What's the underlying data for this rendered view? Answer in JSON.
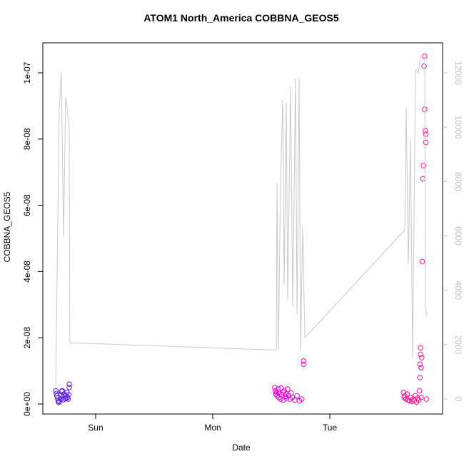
{
  "chart_data": {
    "type": "scatter",
    "title": "ATOM1 North_America COBBNA_GEOS5",
    "x_label": "Date",
    "y_label": "COBBNA_GEOS5",
    "xlim": [
      0.549,
      3.963
    ],
    "xticks": [
      {
        "value": 1,
        "label": "Sun"
      },
      {
        "value": 2,
        "label": "Mon"
      },
      {
        "value": 3,
        "label": "Tue"
      }
    ],
    "ylim": [
      -3.02e-09,
      1.0905e-07
    ],
    "yticks": [
      {
        "value": 0,
        "label": "0e+00"
      },
      {
        "value": 2e-08,
        "label": "2e-08"
      },
      {
        "value": 4e-08,
        "label": "4e-08"
      },
      {
        "value": 6e-08,
        "label": "6e-08"
      },
      {
        "value": 8e-08,
        "label": "8e-08"
      },
      {
        "value": 1e-07,
        "label": "1e-07"
      }
    ],
    "y2lim": [
      -551,
      13103
    ],
    "y2ticks": [
      0,
      2000,
      4000,
      6000,
      8000,
      10000,
      12000
    ],
    "y2_color": "#c0c0c0",
    "series": [
      {
        "type": "scatter",
        "color_stops": [
          "#5a1de6",
          "#e600e6",
          "#ff1a8c"
        ],
        "x": [
          0.66,
          0.665,
          0.67,
          0.675,
          0.68,
          0.685,
          0.69,
          0.7,
          0.705,
          0.71,
          0.715,
          0.72,
          0.725,
          0.73,
          0.74,
          0.745,
          0.75,
          0.755,
          0.76,
          0.765,
          0.77,
          0.775,
          0.775,
          2.53,
          2.535,
          2.54,
          2.545,
          2.55,
          2.56,
          2.565,
          2.57,
          2.58,
          2.585,
          2.59,
          2.6,
          2.605,
          2.61,
          2.62,
          2.625,
          2.63,
          2.64,
          2.65,
          2.66,
          2.67,
          2.68,
          2.7,
          2.72,
          2.74,
          2.76,
          2.775,
          2.775,
          3.63,
          3.635,
          3.64,
          3.65,
          3.66,
          3.67,
          3.68,
          3.69,
          3.7,
          3.71,
          3.72,
          3.73,
          3.74,
          3.75,
          3.76,
          3.765,
          3.77,
          3.77,
          3.775,
          3.775,
          3.78,
          3.78,
          3.785,
          3.79,
          3.795,
          3.8,
          3.805,
          3.81,
          3.81,
          3.815,
          3.82,
          3.82,
          3.825
        ],
        "values": [
          4e-09,
          3.2e-09,
          2.5e-09,
          1.8e-09,
          1e-09,
          5e-10,
          8e-10,
          1.5e-09,
          2.7e-09,
          3.8e-09,
          4e-09,
          2.2e-09,
          1.3e-09,
          3e-09,
          1.6e-09,
          2.5e-09,
          1.8e-09,
          3.5e-09,
          2e-09,
          1.5e-09,
          2.8e-09,
          6e-09,
          5e-09,
          5e-09,
          4e-09,
          3e-09,
          3.5e-09,
          2.5e-09,
          4.5e-09,
          2e-09,
          3.2e-09,
          1.5e-09,
          4.8e-09,
          2.8e-09,
          3.5e-09,
          1.2e-09,
          4e-09,
          2.3e-09,
          3e-09,
          1.8e-09,
          4.5e-09,
          2.6e-09,
          1.5e-09,
          3.3e-09,
          2e-09,
          1.2e-09,
          2.5e-09,
          1e-09,
          1.5e-09,
          1.2e-08,
          1.3e-08,
          3.5e-09,
          2e-09,
          2.5e-09,
          1.5e-09,
          3e-09,
          1.2e-09,
          1e-09,
          2e-09,
          8e-10,
          1.5e-09,
          1e-09,
          2.5e-09,
          6e-10,
          1.8e-09,
          1.2e-09,
          4e-09,
          8e-09,
          1.2e-08,
          1.5e-08,
          1.7e-08,
          1.1e-08,
          2e-09,
          1.4e-08,
          4.3e-08,
          6.8e-08,
          7.2e-08,
          1.02e-07,
          1.05e-07,
          8.9e-08,
          8.25e-08,
          8.15e-08,
          7.9e-08,
          1.5e-09
        ]
      },
      {
        "type": "line",
        "axis": "y2",
        "color": "#c8c8c8",
        "x": [
          0.659,
          0.689,
          0.707,
          0.726,
          0.744,
          0.762,
          0.774,
          0.78,
          2.543,
          2.549,
          2.561,
          2.579,
          2.598,
          2.61,
          2.628,
          2.64,
          2.665,
          2.683,
          2.707,
          2.72,
          2.738,
          2.75,
          2.768,
          2.787,
          3.64,
          3.652,
          3.671,
          3.689,
          3.707,
          3.732,
          3.756,
          3.774,
          3.811,
          3.817,
          3.829
        ],
        "values": [
          500,
          10600,
          12000,
          6000,
          11100,
          10500,
          10000,
          2070,
          1800,
          7950,
          1800,
          8000,
          11000,
          4200,
          10900,
          3650,
          11500,
          3400,
          11800,
          3100,
          11800,
          1800,
          6300,
          2260,
          6220,
          10740,
          4960,
          9560,
          1550,
          12100,
          12000,
          12630,
          12630,
          3390,
          3050
        ]
      }
    ]
  }
}
